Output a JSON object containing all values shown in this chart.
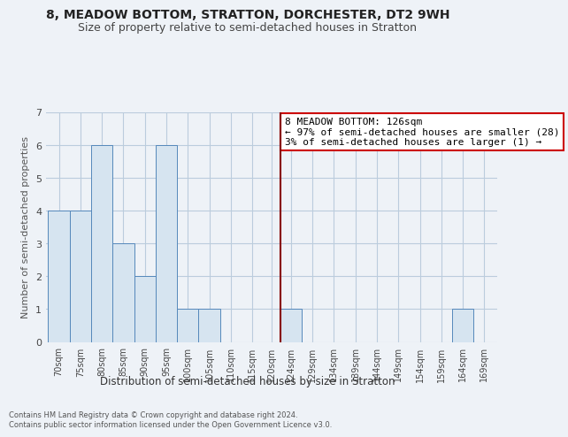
{
  "title": "8, MEADOW BOTTOM, STRATTON, DORCHESTER, DT2 9WH",
  "subtitle": "Size of property relative to semi-detached houses in Stratton",
  "xlabel_bottom": "Distribution of semi-detached houses by size in Stratton",
  "ylabel": "Number of semi-detached properties",
  "footer_line1": "Contains HM Land Registry data © Crown copyright and database right 2024.",
  "footer_line2": "Contains public sector information licensed under the Open Government Licence v3.0.",
  "bin_labels": [
    "70sqm",
    "75sqm",
    "80sqm",
    "85sqm",
    "90sqm",
    "95sqm",
    "100sqm",
    "105sqm",
    "110sqm",
    "115sqm",
    "120sqm",
    "124sqm",
    "129sqm",
    "134sqm",
    "139sqm",
    "144sqm",
    "149sqm",
    "154sqm",
    "159sqm",
    "164sqm",
    "169sqm"
  ],
  "bin_left_edges": [
    70,
    75,
    80,
    85,
    90,
    95,
    100,
    105,
    110,
    115,
    120,
    124,
    129,
    134,
    139,
    144,
    149,
    154,
    159,
    164,
    169
  ],
  "bin_widths": [
    5,
    5,
    5,
    5,
    5,
    5,
    5,
    5,
    5,
    5,
    4,
    5,
    5,
    5,
    5,
    5,
    5,
    5,
    5,
    5,
    5
  ],
  "bar_heights": [
    4,
    4,
    6,
    3,
    2,
    6,
    1,
    1,
    0,
    0,
    0,
    1,
    0,
    0,
    0,
    0,
    0,
    0,
    0,
    1,
    0
  ],
  "bar_color": "#d6e4f0",
  "bar_edge_color": "#5588bb",
  "vline_x": 124,
  "vline_color": "#880000",
  "annotation_text": "8 MEADOW BOTTOM: 126sqm\n← 97% of semi-detached houses are smaller (28)\n3% of semi-detached houses are larger (1) →",
  "annotation_box_color": "#ffffff",
  "annotation_box_edge": "#cc0000",
  "ylim": [
    0,
    7
  ],
  "yticks": [
    0,
    1,
    2,
    3,
    4,
    5,
    6,
    7
  ],
  "grid_color": "#bbccdd",
  "background_color": "#eef2f7",
  "axes_background": "#eef2f7",
  "title_fontsize": 10,
  "subtitle_fontsize": 9,
  "annotation_fontsize": 8,
  "tick_fontsize": 7
}
